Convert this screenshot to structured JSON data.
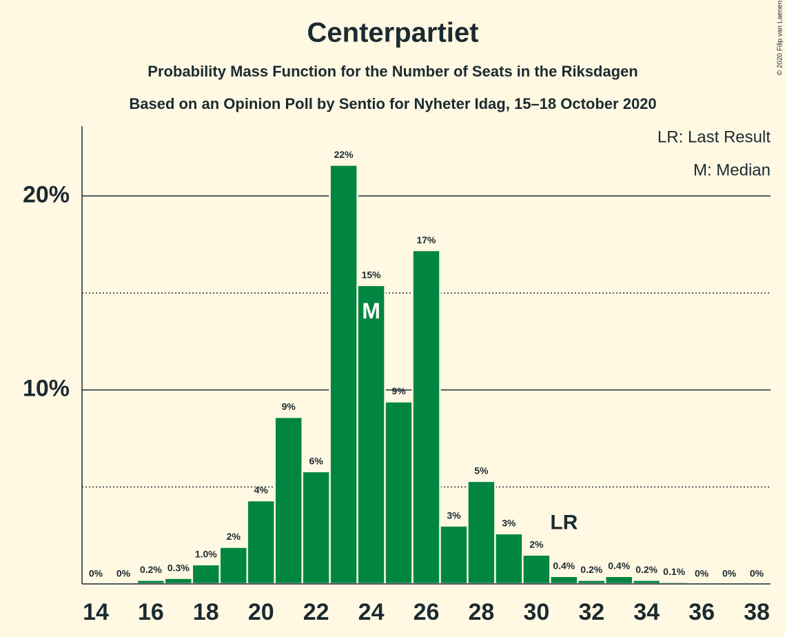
{
  "chart_data": {
    "type": "bar",
    "title": "Centerpartiet",
    "subtitle": "Probability Mass Function for the Number of Seats in the Riksdagen",
    "subtitle2": "Based on an Opinion Poll by Sentio for Nyheter Idag, 15–18 October 2020",
    "copyright": "© 2020 Filip van Laenen",
    "x": [
      14,
      15,
      16,
      17,
      18,
      19,
      20,
      21,
      22,
      23,
      24,
      25,
      26,
      27,
      28,
      29,
      30,
      31,
      32,
      33,
      34,
      35,
      36,
      37,
      38
    ],
    "values": [
      0,
      0,
      0.2,
      0.3,
      1.0,
      1.9,
      4.3,
      8.6,
      5.8,
      21.6,
      15.4,
      9.4,
      17.2,
      3.0,
      5.3,
      2.6,
      1.5,
      0.4,
      0.2,
      0.4,
      0.2,
      0.1,
      0,
      0,
      0
    ],
    "value_labels": [
      "0%",
      "0%",
      "0.2%",
      "0.3%",
      "1.0%",
      "2%",
      "4%",
      "9%",
      "6%",
      "22%",
      "15%",
      "9%",
      "17%",
      "3%",
      "5%",
      "3%",
      "2%",
      "0.4%",
      "0.2%",
      "0.4%",
      "0.2%",
      "0.1%",
      "0%",
      "0%",
      "0%"
    ],
    "color": "#008641",
    "xlim": [
      13.5,
      38.5
    ],
    "xticks": [
      14,
      16,
      18,
      20,
      22,
      24,
      26,
      28,
      30,
      32,
      34,
      36,
      38
    ],
    "ylim": [
      0,
      23.6
    ],
    "yticks": [
      {
        "value": 10,
        "label": "10%"
      },
      {
        "value": 20,
        "label": "20%"
      }
    ],
    "minor_yticks": [
      5,
      15
    ],
    "grid": true,
    "median": 24,
    "median_marker": "M",
    "median_legend": "M: Median",
    "last_result": 31,
    "last_result_marker": "LR",
    "last_result_legend": "LR: Last Result"
  }
}
